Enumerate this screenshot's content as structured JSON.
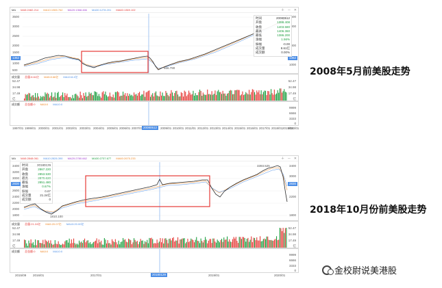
{
  "colors": {
    "price": "#2a2a2a",
    "ma_a": "#ef8a2a",
    "ma_b": "#4c8ee6",
    "highlight": "#e53935",
    "up": "#e53935",
    "down": "#1b9e3e",
    "crosshair": "#4c8ee6"
  },
  "chart1": {
    "ma_label": "MA",
    "ma_items": [
      "MA5:2482.214",
      "MA10:1965.762",
      "MA20:1368.466",
      "MA30:1278.201",
      "MA60:1369.102"
    ],
    "y_ticks": [
      "3500",
      "3000",
      "2500",
      "2000",
      "1500",
      "1000",
      "500"
    ],
    "right_ticks": [
      "3500",
      "3000",
      "2000",
      "1000"
    ],
    "price_tag": "1362",
    "low_label": "666.790",
    "info": {
      "rows": [
        {
          "k": "时间",
          "v": "20080512"
        },
        {
          "k": "开盘",
          "v": "1388.408"
        },
        {
          "k": "收盘",
          "v": "1403.580"
        },
        {
          "k": "最高",
          "v": "1406.360"
        },
        {
          "k": "最低",
          "v": "1386.200"
        },
        {
          "k": "涨幅",
          "v": "1.56%"
        },
        {
          "k": "振幅",
          "v": "-0.00"
        },
        {
          "k": "成交量",
          "v": "8.61亿"
        },
        {
          "k": "成交额",
          "v": "0.00%"
        }
      ]
    },
    "volume_title": [
      "成交量",
      "总量:8.61亿",
      "MA5:8.66亿",
      "MA10:8.4亿"
    ],
    "volume_ticks": [
      "52.47",
      "34.98",
      "17.49",
      "亿"
    ],
    "vol_right": [
      "52.47",
      "34.98",
      "17.49",
      "亿"
    ],
    "money_title": [
      "成交额",
      "总金额:0",
      "MA5:0",
      "MA10:0"
    ],
    "money_ticks": [
      "9999",
      "6666",
      "3333",
      "0"
    ],
    "dates": [
      "1997/01",
      "1999/01",
      "2000/01",
      "2001/01",
      "2002/01",
      "2003/01",
      "2004/01",
      "2005/01",
      "2006/01",
      "2007/01",
      "20080512",
      "2009/01",
      "2010/01",
      "2011/01",
      "2012/01",
      "2013/01",
      "2014/01",
      "2015/01",
      "2016/01",
      "2017/01",
      "2018/01",
      "2019/01",
      "2020/01"
    ]
  },
  "chart2": {
    "ma_label": "MA",
    "ma_items": [
      "MA5:2848.061",
      "MA10:2826.390",
      "MA20:2780.662",
      "MA30:2737.677",
      "MA60:2675.233"
    ],
    "y_ticks": [
      "3400",
      "3200",
      "3000",
      "2800",
      "2600",
      "2400",
      "2200",
      "2000",
      "1800"
    ],
    "right_ticks": [
      "3400",
      "3000",
      "2600",
      "2200",
      "1800"
    ],
    "price_tag": "2830",
    "high_label": "3393.525",
    "low_label": "1810.100",
    "info": {
      "rows": [
        {
          "k": "时间",
          "v": "20180129"
        },
        {
          "k": "开盘",
          "v": "2867.220"
        },
        {
          "k": "收盘",
          "v": "2853.530"
        },
        {
          "k": "最高",
          "v": "2870.620"
        },
        {
          "k": "最低",
          "v": "2851.480"
        },
        {
          "k": "涨幅",
          "v": "0.67%"
        },
        {
          "k": "振幅",
          "v": "0.67"
        },
        {
          "k": "成交量",
          "v": "21.24亿"
        },
        {
          "k": "成交额",
          "v": "0"
        }
      ]
    },
    "volume_title": [
      "成交量",
      "总量:21.24亿",
      "MA5:20.07亿",
      "MA10:20.00亿"
    ],
    "volume_ticks": [
      "52.47",
      "34.98",
      "17.49",
      "亿"
    ],
    "money_title": [
      "成交额",
      "总金额:0",
      "MA5:0",
      "MA10:0"
    ],
    "money_ticks": [
      "9999",
      "6666",
      "3333",
      "0"
    ],
    "dates": [
      "2015/09",
      "2016/01",
      "2017/01",
      "20180129",
      "2019/01",
      "2020/01"
    ]
  },
  "captions": {
    "top": "2008年5月前美股走势",
    "bottom": "2018年10月份前美股走势"
  },
  "brand": "金校尉说美港股"
}
